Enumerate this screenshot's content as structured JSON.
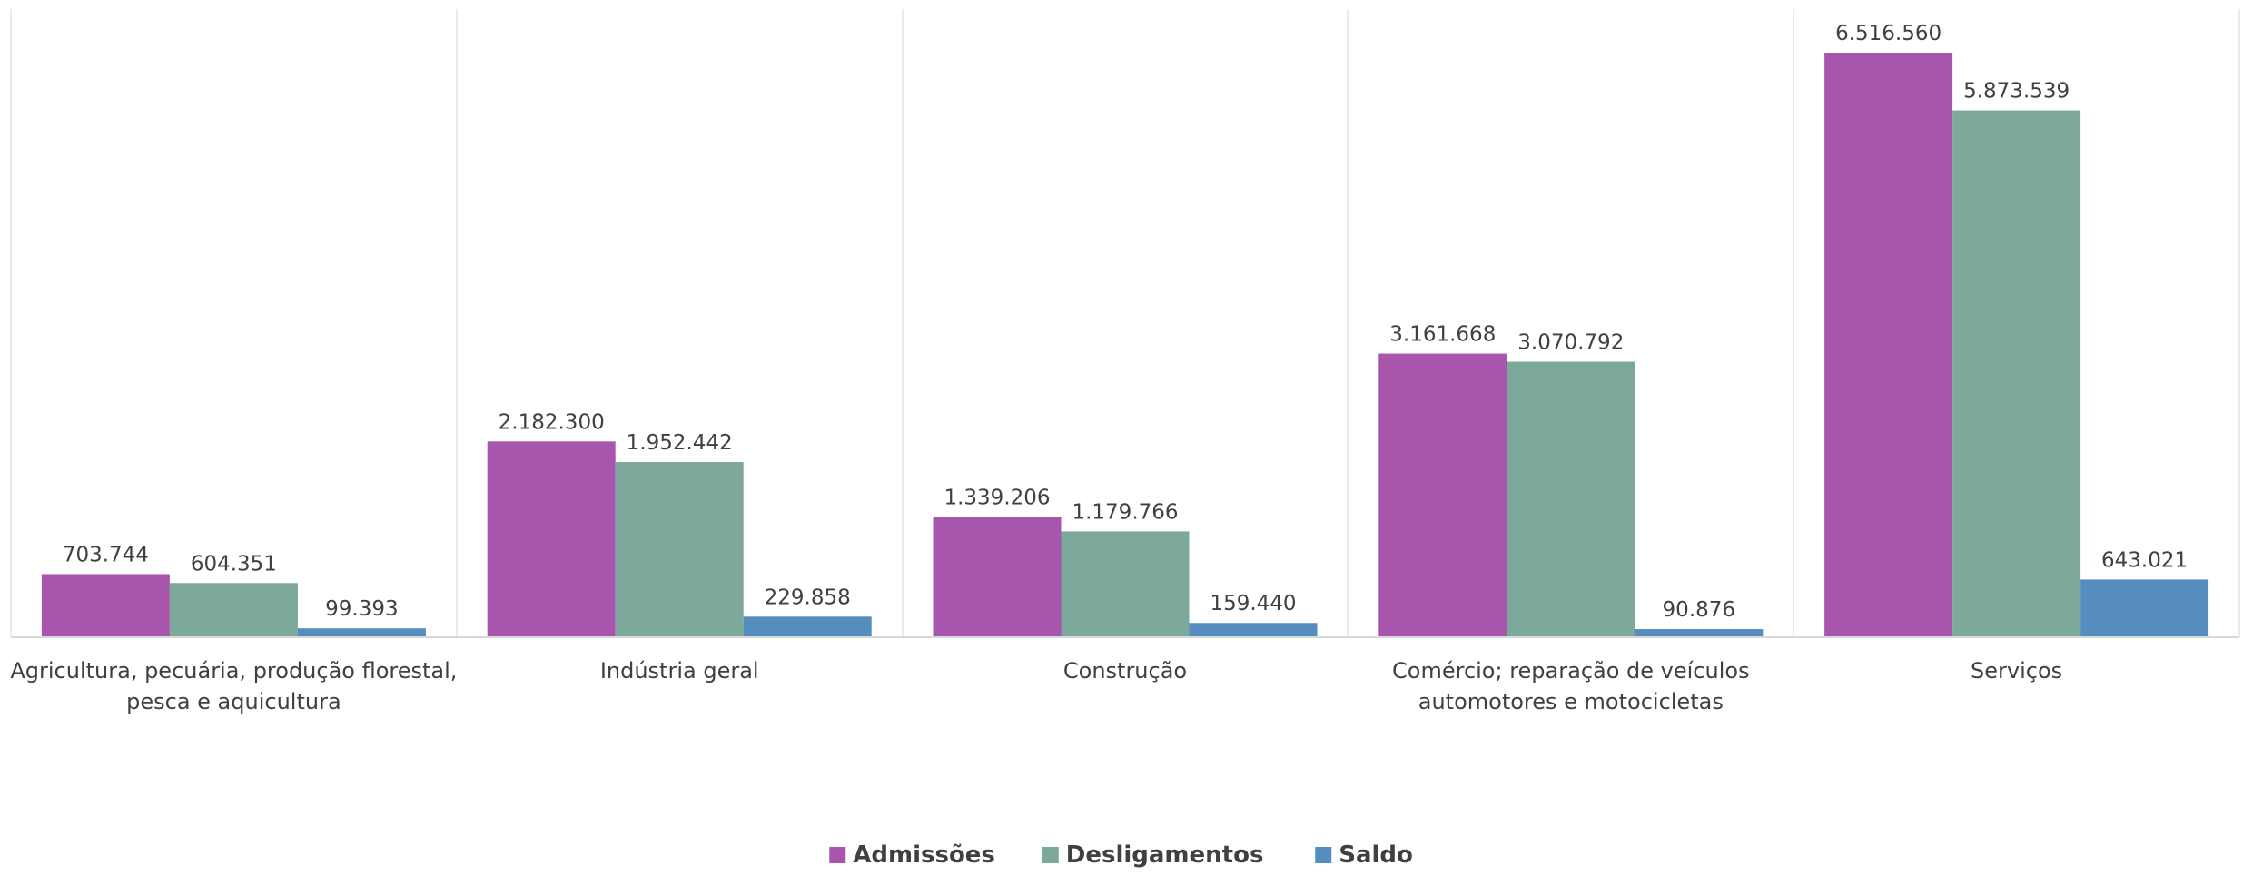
{
  "chart_data": {
    "type": "bar",
    "title": "",
    "xlabel": "",
    "ylabel": "",
    "categories": [
      [
        "Agricultura, pecuária, produção florestal,",
        "pesca e aquicultura"
      ],
      [
        "Indústria geral"
      ],
      [
        "Construção"
      ],
      [
        "Comércio; reparação de veículos",
        "automotores e motocicletas"
      ],
      [
        "Serviços"
      ]
    ],
    "series": [
      {
        "name": "Admissões",
        "color": "#A855AE",
        "values": [
          703744,
          2182300,
          1339206,
          3161668,
          6516560
        ],
        "labels": [
          "703.744",
          "2.182.300",
          "1.339.206",
          "3.161.668",
          "6.516.560"
        ]
      },
      {
        "name": "Desligamentos",
        "color": "#7DA89C",
        "values": [
          604351,
          1952442,
          1179766,
          3070792,
          5873539
        ],
        "labels": [
          "604.351",
          "1.952.442",
          "1.179.766",
          "3.070.792",
          "5.873.539"
        ]
      },
      {
        "name": "Saldo",
        "color": "#558DBE",
        "values": [
          99393,
          229858,
          159440,
          90876,
          643021
        ],
        "labels": [
          "99.393",
          "229.858",
          "159.440",
          "90.876",
          "643.021"
        ]
      }
    ],
    "ylim": [
      0,
      7000000
    ],
    "grid": false,
    "legend_position": "bottom"
  }
}
